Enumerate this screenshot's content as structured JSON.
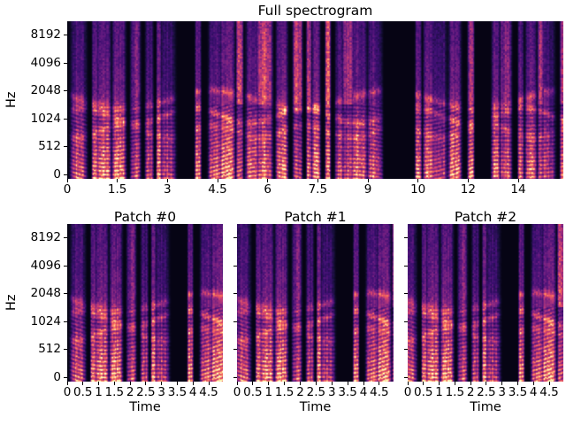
{
  "figure": {
    "background": "#ffffff",
    "text_color": "#000000",
    "colormap": "magma",
    "colormap_stops": [
      "#000004",
      "#140e36",
      "#3b0f70",
      "#641a80",
      "#8c2981",
      "#b73779",
      "#de4968",
      "#f7705c",
      "#fe9f6d",
      "#fecf92",
      "#fcfdbf"
    ]
  },
  "chart_data": [
    {
      "type": "heatmap",
      "subtype": "mel-spectrogram",
      "title": "Full spectrogram",
      "xlabel": "",
      "ylabel": "Hz",
      "x_ticks": {
        "values": [
          0,
          1.5,
          3,
          4.5,
          6,
          7.5,
          9,
          10.5,
          12,
          13.5
        ],
        "labels": [
          "0",
          "1.5",
          "3",
          "4.5",
          "6",
          "7.5",
          "9",
          "10",
          "12",
          "14"
        ],
        "axis_max": 14.85
      },
      "y_ticks": {
        "labels": [
          "0",
          "512",
          "1024",
          "2048",
          "4096",
          "8192"
        ],
        "show_labels": true
      },
      "colormap": "magma",
      "description": "Speech mel spectrogram, ~15 s long; strong harmonic energy below ~1 kHz, vertical syllable bursts, silent pauses near 3.3 s and 9.8 s, sparse purple streaks above 4 kHz"
    },
    {
      "type": "heatmap",
      "subtype": "mel-spectrogram",
      "title": "Patch #0",
      "xlabel": "Time",
      "ylabel": "Hz",
      "x_ticks": {
        "values": [
          0,
          0.5,
          1,
          1.5,
          2,
          2.5,
          3,
          3.5,
          4,
          4.5
        ],
        "labels": [
          "0",
          "0.5",
          "1",
          "1.5",
          "2",
          "2.5",
          "3",
          "3.5",
          "4",
          "4.5"
        ],
        "axis_max": 4.95
      },
      "y_ticks": {
        "labels": [
          "0",
          "512",
          "1024",
          "2048",
          "4096",
          "8192"
        ],
        "show_labels": true
      },
      "colormap": "magma",
      "description": "First ~5 s patch cropped from the full spectrogram"
    },
    {
      "type": "heatmap",
      "subtype": "mel-spectrogram",
      "title": "Patch #1",
      "xlabel": "Time",
      "ylabel": "",
      "x_ticks": {
        "values": [
          0,
          0.5,
          1,
          1.5,
          2,
          2.5,
          3,
          3.5,
          4,
          4.5
        ],
        "labels": [
          "0",
          "0.5",
          "1",
          "1.5",
          "2",
          "2.5",
          "3",
          "3.5",
          "4",
          "4.5"
        ],
        "axis_max": 4.95
      },
      "y_ticks": {
        "labels": [
          "0",
          "512",
          "1024",
          "2048",
          "4096",
          "8192"
        ],
        "show_labels": false
      },
      "colormap": "magma",
      "description": "~5 s patch, slightly shifted window of the same audio"
    },
    {
      "type": "heatmap",
      "subtype": "mel-spectrogram",
      "title": "Patch #2",
      "xlabel": "Time",
      "ylabel": "",
      "x_ticks": {
        "values": [
          0,
          0.5,
          1,
          1.5,
          2,
          2.5,
          3,
          3.5,
          4,
          4.5
        ],
        "labels": [
          "0",
          "0.5",
          "1",
          "1.5",
          "2",
          "2.5",
          "3",
          "3.5",
          "4",
          "4.5"
        ],
        "axis_max": 4.95
      },
      "y_ticks": {
        "labels": [
          "0",
          "512",
          "1024",
          "2048",
          "4096",
          "8192"
        ],
        "show_labels": false
      },
      "colormap": "magma",
      "description": "~5 s patch, slightly shifted window of the same audio"
    }
  ]
}
